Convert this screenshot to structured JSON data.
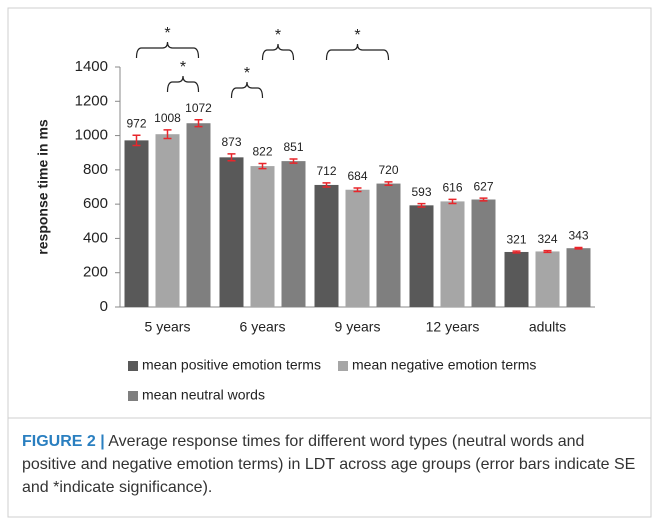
{
  "chart_data": {
    "type": "bar",
    "ylabel": "response time in ms",
    "categories": [
      "5 years",
      "6 years",
      "9 years",
      "12 years",
      "adults"
    ],
    "series": [
      {
        "name": "mean positive emotion terms",
        "color": "#595959",
        "values": [
          972,
          873,
          712,
          593,
          321
        ],
        "errors": [
          30,
          20,
          12,
          10,
          5
        ]
      },
      {
        "name": "mean negative emotion terms",
        "color": "#a6a6a6",
        "values": [
          1008,
          822,
          684,
          616,
          324
        ],
        "errors": [
          25,
          15,
          10,
          12,
          5
        ]
      },
      {
        "name": "mean neutral words",
        "color": "#7f7f7f",
        "values": [
          1072,
          851,
          720,
          627,
          343
        ],
        "errors": [
          20,
          12,
          10,
          8,
          4
        ]
      }
    ],
    "error_color": "#e8262b",
    "ylim": [
      0,
      1400
    ],
    "yticks": [
      0,
      200,
      400,
      600,
      800,
      1000,
      1200,
      1400
    ],
    "significance": [
      {
        "category": 0,
        "series": [
          0,
          2
        ],
        "label": "*"
      },
      {
        "category": 0,
        "series": [
          1,
          2
        ],
        "label": "*"
      },
      {
        "category": 1,
        "series": [
          0,
          1
        ],
        "label": "*"
      },
      {
        "category": 1,
        "series": [
          1,
          2
        ],
        "label": "*"
      },
      {
        "category": 2,
        "series": [
          0,
          2
        ],
        "label": "*"
      }
    ]
  },
  "caption": {
    "label": "FIGURE 2 |",
    "text": "Average response times for different word types (neutral words and positive and negative emotion terms) in LDT across age groups (error bars indicate SE and *indicate significance)."
  }
}
